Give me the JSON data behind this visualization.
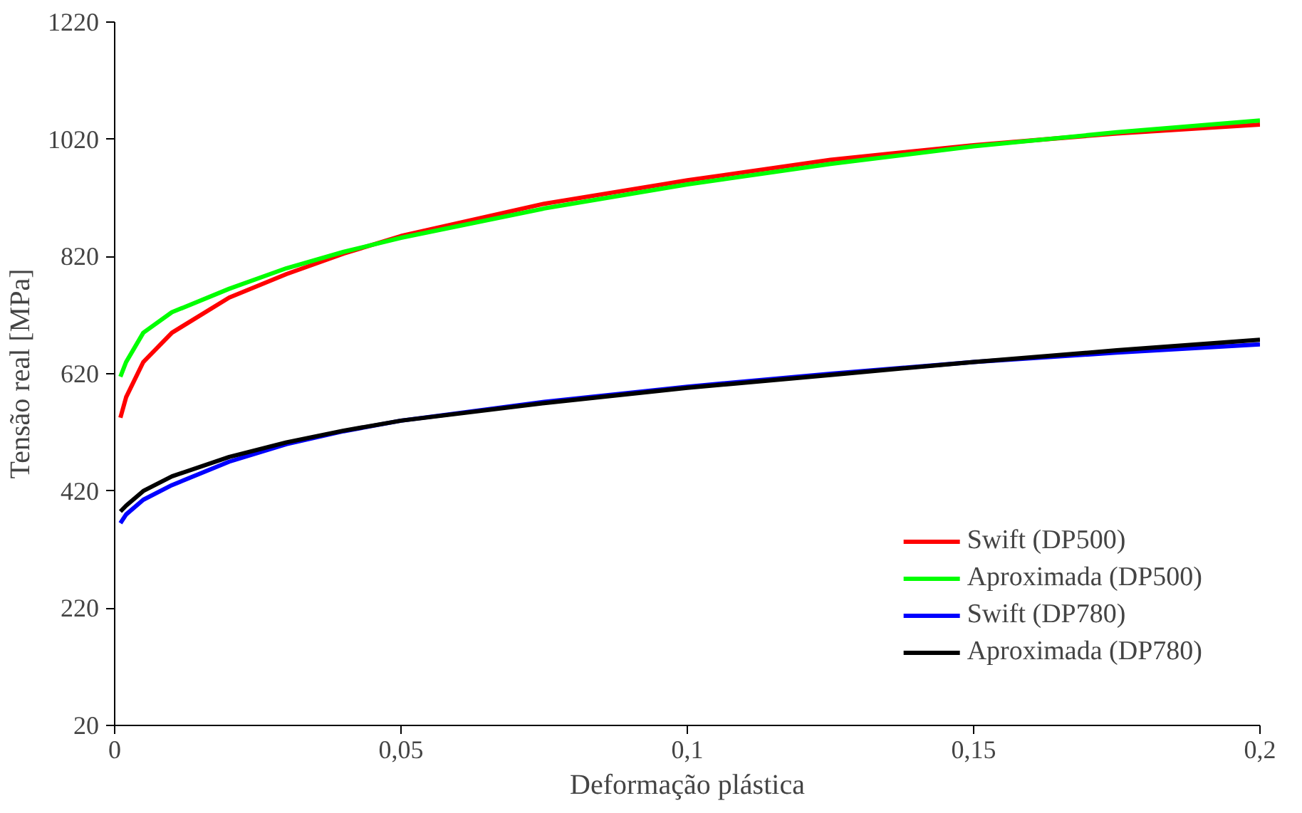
{
  "chart_data": {
    "type": "line",
    "xlabel": "Deformação plástica",
    "ylabel": "Tensão real [MPa]",
    "xlim": [
      0,
      0.2
    ],
    "ylim": [
      20,
      1220
    ],
    "xticks": [
      0,
      {
        "value": 0.05,
        "label": "0,05"
      },
      {
        "value": 0.1,
        "label": "0,1"
      },
      {
        "value": 0.15,
        "label": "0,15"
      },
      {
        "value": 0.2,
        "label": "0,2"
      }
    ],
    "yticks": [
      20,
      220,
      420,
      620,
      820,
      1020,
      1220
    ],
    "grid": false,
    "legend": "bottom right",
    "marker": "none",
    "line_style": "solid",
    "x": [
      0.001,
      0.002,
      0.005,
      0.01,
      0.02,
      0.03,
      0.04,
      0.05,
      0.075,
      0.1,
      0.125,
      0.15,
      0.175,
      0.2
    ],
    "series": [
      {
        "name": "Swift (DP500)",
        "color": "#ff0000",
        "values": [
          545,
          580,
          640,
          690,
          750,
          790,
          825,
          855,
          910,
          950,
          985,
          1010,
          1030,
          1045
        ]
      },
      {
        "name": "Aproximada (DP500)",
        "color": "#00ff00",
        "values": [
          615,
          640,
          690,
          725,
          765,
          800,
          828,
          852,
          902,
          943,
          978,
          1008,
          1032,
          1052
        ]
      },
      {
        "name": "Swift (DP780)",
        "color": "#0000ff",
        "values": [
          365,
          380,
          405,
          430,
          470,
          500,
          522,
          540,
          572,
          598,
          620,
          640,
          656,
          670
        ]
      },
      {
        "name": "Aproximada (DP780)",
        "color": "#000000",
        "values": [
          385,
          395,
          420,
          445,
          478,
          503,
          523,
          540,
          570,
          596,
          618,
          640,
          660,
          678
        ]
      }
    ]
  }
}
